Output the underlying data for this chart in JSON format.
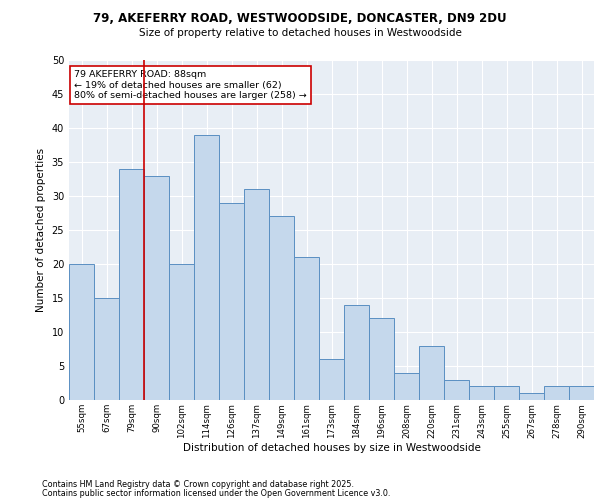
{
  "title_line1": "79, AKEFERRY ROAD, WESTWOODSIDE, DONCASTER, DN9 2DU",
  "title_line2": "Size of property relative to detached houses in Westwoodside",
  "categories": [
    "55sqm",
    "67sqm",
    "79sqm",
    "90sqm",
    "102sqm",
    "114sqm",
    "126sqm",
    "137sqm",
    "149sqm",
    "161sqm",
    "173sqm",
    "184sqm",
    "196sqm",
    "208sqm",
    "220sqm",
    "231sqm",
    "243sqm",
    "255sqm",
    "267sqm",
    "278sqm",
    "290sqm"
  ],
  "values": [
    20,
    15,
    34,
    33,
    20,
    39,
    29,
    31,
    27,
    21,
    6,
    14,
    12,
    4,
    8,
    3,
    2,
    2,
    1,
    2,
    2
  ],
  "bar_color": "#c5d8ec",
  "bar_edge_color": "#5a8fc2",
  "background_color": "#e8eef5",
  "grid_color": "#ffffff",
  "xlabel": "Distribution of detached houses by size in Westwoodside",
  "ylabel": "Number of detached properties",
  "ylim": [
    0,
    50
  ],
  "yticks": [
    0,
    5,
    10,
    15,
    20,
    25,
    30,
    35,
    40,
    45,
    50
  ],
  "vline_color": "#cc0000",
  "annotation_text": "79 AKEFERRY ROAD: 88sqm\n← 19% of detached houses are smaller (62)\n80% of semi-detached houses are larger (258) →",
  "annotation_box_color": "#ffffff",
  "annotation_box_edge_color": "#cc0000",
  "footer_line1": "Contains HM Land Registry data © Crown copyright and database right 2025.",
  "footer_line2": "Contains public sector information licensed under the Open Government Licence v3.0."
}
